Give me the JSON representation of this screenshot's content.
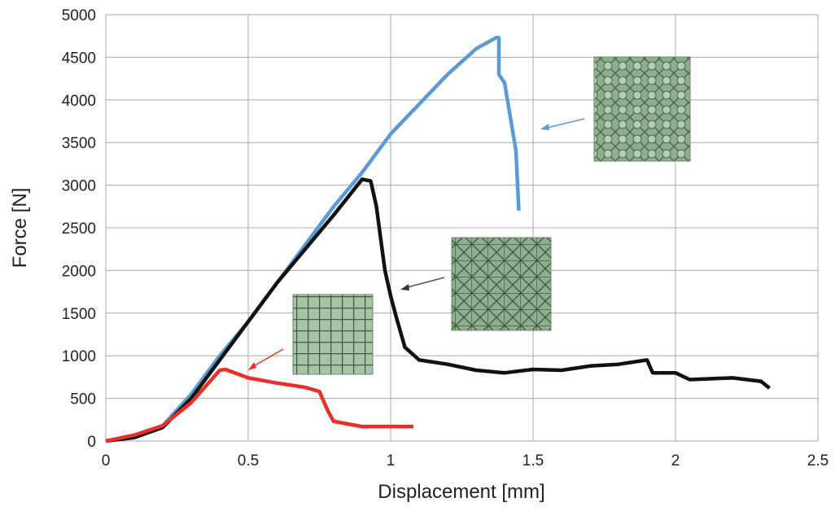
{
  "chart_data": {
    "type": "line",
    "x_label": "Displacement [mm]",
    "y_label": "Force [N]",
    "xlim": [
      0,
      2.5
    ],
    "xticks": [
      0,
      0.5,
      1,
      1.5,
      2,
      2.5
    ],
    "ylim": [
      0,
      5000
    ],
    "yticks": [
      0,
      500,
      1000,
      1500,
      2000,
      2500,
      3000,
      3500,
      4000,
      4500,
      5000
    ],
    "grid": true,
    "series": [
      {
        "color": "#5b9bd5",
        "x": [
          0,
          0.1,
          0.2,
          0.3,
          0.4,
          0.5,
          0.6,
          0.7,
          0.8,
          0.9,
          1.0,
          1.1,
          1.2,
          1.3,
          1.37,
          1.38,
          1.38,
          1.4,
          1.42,
          1.44,
          1.45
        ],
        "values": [
          0,
          60,
          180,
          550,
          1000,
          1400,
          1850,
          2300,
          2750,
          3150,
          3600,
          3950,
          4300,
          4600,
          4730,
          4730,
          4300,
          4200,
          3800,
          3400,
          2700
        ]
      },
      {
        "color": "#111111",
        "x": [
          0,
          0.1,
          0.2,
          0.3,
          0.4,
          0.5,
          0.6,
          0.7,
          0.8,
          0.9,
          0.93,
          0.95,
          0.98,
          1.0,
          1.02,
          1.05,
          1.1,
          1.2,
          1.3,
          1.4,
          1.5,
          1.6,
          1.7,
          1.8,
          1.9,
          1.92,
          2.0,
          2.05,
          2.2,
          2.3,
          2.33
        ],
        "values": [
          0,
          40,
          160,
          500,
          950,
          1400,
          1850,
          2250,
          2650,
          3070,
          3050,
          2750,
          2000,
          1700,
          1450,
          1100,
          950,
          900,
          830,
          800,
          840,
          830,
          880,
          900,
          950,
          800,
          800,
          720,
          740,
          700,
          620
        ]
      },
      {
        "color": "#e8302a",
        "x": [
          0,
          0.1,
          0.2,
          0.3,
          0.4,
          0.42,
          0.5,
          0.6,
          0.7,
          0.75,
          0.78,
          0.8,
          0.9,
          1.0,
          1.08
        ],
        "values": [
          0,
          70,
          180,
          450,
          830,
          840,
          740,
          680,
          630,
          580,
          350,
          230,
          170,
          170,
          170
        ]
      }
    ]
  }
}
